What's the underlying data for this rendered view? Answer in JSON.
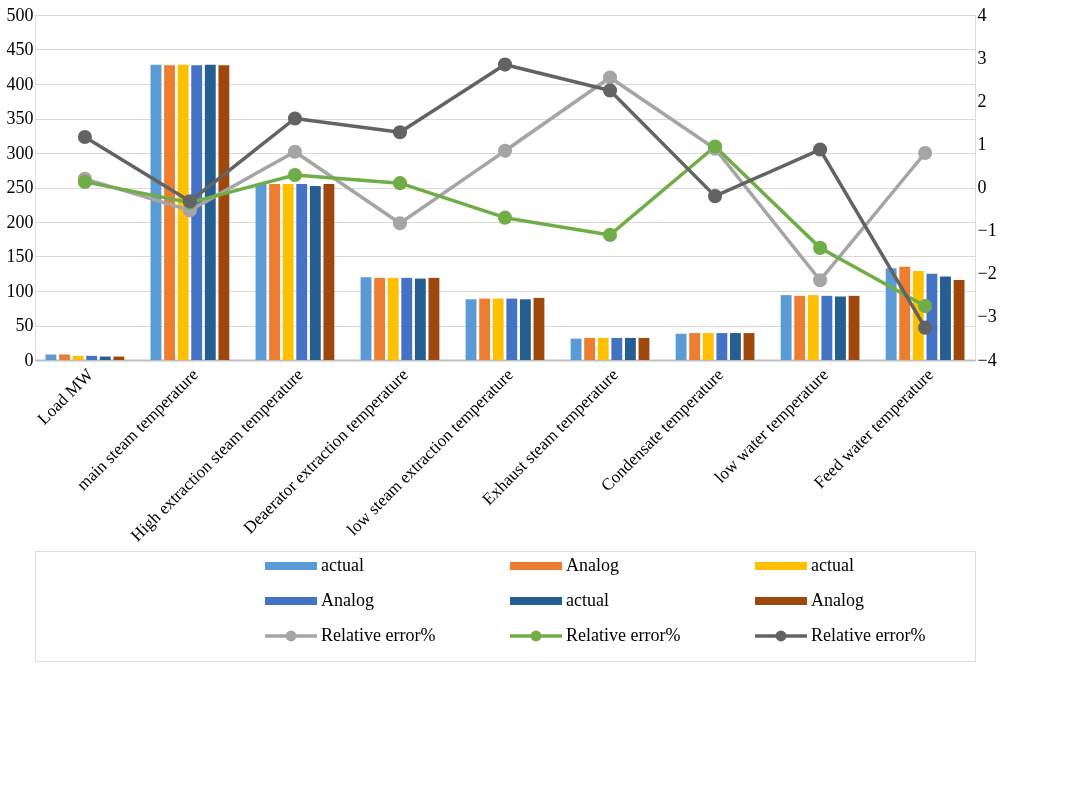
{
  "chart_data": {
    "type": "bar",
    "categories": [
      "Load MW",
      "main steam temperature",
      "High extraction steam temperature",
      "Deaerator extraction temperature",
      "low steam extraction temperature",
      "Exhaust steam temperature",
      "Condensate temperature",
      "low water temperature",
      "Feed water temperature"
    ],
    "series": [
      {
        "name": "actual",
        "color": "#5b9bd5",
        "values": [
          8,
          428,
          255,
          120,
          88,
          31,
          38,
          94,
          133
        ]
      },
      {
        "name": "Analog",
        "color": "#ed7d31",
        "values": [
          8,
          427,
          255,
          119,
          89,
          32,
          39,
          93,
          135
        ]
      },
      {
        "name": "actual",
        "color": "#ffc000",
        "values": [
          6,
          428,
          255,
          119,
          89,
          32,
          39,
          94,
          129
        ]
      },
      {
        "name": "Analog",
        "color": "#4472c4",
        "values": [
          6,
          427,
          255,
          119,
          89,
          32,
          39,
          93,
          125
        ]
      },
      {
        "name": "actual",
        "color": "#255e91",
        "values": [
          5,
          428,
          252,
          118,
          88,
          32,
          39,
          92,
          121
        ]
      },
      {
        "name": "Analog",
        "color": "#9e480e",
        "values": [
          5,
          427,
          255,
          119,
          90,
          32,
          39,
          93,
          116
        ]
      },
      {
        "name": "Relative error%",
        "type": "line",
        "axis": "y2",
        "color": "#a5a5a5",
        "values": [
          0.2,
          -0.53,
          0.83,
          -0.83,
          0.85,
          2.55,
          0.9,
          -2.15,
          0.8
        ]
      },
      {
        "name": "Relative error%",
        "type": "line",
        "axis": "y2",
        "color": "#70ad47",
        "values": [
          0.13,
          -0.35,
          0.29,
          0.1,
          -0.7,
          -1.1,
          0.95,
          -1.4,
          -2.75
        ]
      },
      {
        "name": "Relative error%",
        "type": "line",
        "axis": "y2",
        "color": "#636363",
        "values": [
          1.17,
          -0.32,
          1.6,
          1.28,
          2.85,
          2.25,
          -0.2,
          0.88,
          -3.25
        ]
      }
    ],
    "ylim": [
      0,
      500
    ],
    "yticks": [
      0,
      50,
      100,
      150,
      200,
      250,
      300,
      350,
      400,
      450,
      500
    ],
    "y2lim": [
      -4,
      4
    ],
    "y2ticks": [
      -4,
      -3,
      -2,
      -1,
      0,
      1,
      2,
      3,
      4
    ],
    "grid": "y",
    "legend": "bottom",
    "marker": "circle",
    "line_style": "solid"
  }
}
